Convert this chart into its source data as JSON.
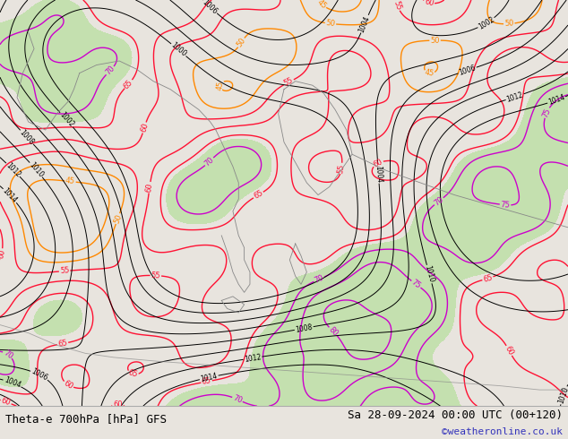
{
  "title_left": "Theta-e 700hPa [hPa] GFS",
  "title_right": "Sa 28-09-2024 00:00 UTC (00+120)",
  "copyright": "©weatheronline.co.uk",
  "bg_color": "#e8e4de",
  "map_bg": "#dbd6cf",
  "ocean_color": "#dbd6cf",
  "land_color": "#e8e4de",
  "green_fill_color": "#b8dfa0",
  "bottom_bar_color": "#ffffff",
  "title_fontsize": 9,
  "copyright_color": "#3333bb",
  "fig_width": 6.34,
  "fig_height": 4.9,
  "dpi": 100,
  "theta_orange_color": "#ff8800",
  "theta_red_color": "#ff1133",
  "theta_magenta_color": "#cc00cc",
  "pressure_color": "#000000"
}
